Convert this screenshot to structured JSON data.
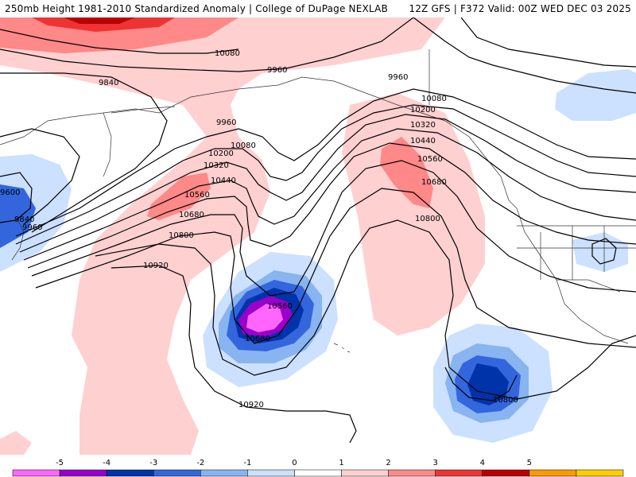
{
  "header": {
    "left_title": "250mb Height 1981-2010 Standardized Anomaly | College of DuPage NEXLAB",
    "right_title": "12Z GFS | F372 Valid: 00Z WED DEC 03 2025"
  },
  "map": {
    "contour_labels": [
      "10080",
      "9960",
      "9840",
      "9960",
      "10080",
      "10200",
      "10320",
      "10440",
      "10560",
      "10680",
      "10800",
      "10920",
      "9600",
      "9840",
      "9960",
      "10560",
      "10680",
      "10920",
      "9960",
      "10080",
      "10200",
      "10320",
      "10440",
      "10560",
      "10680",
      "10800",
      "10800"
    ]
  },
  "legend": {
    "ticks": [
      "-5",
      "-4",
      "-3",
      "-2",
      "-1",
      "0",
      "1",
      "2",
      "3",
      "4",
      "5"
    ],
    "colors": [
      "#ff66ff",
      "#9900cc",
      "#0033aa",
      "#3366dd",
      "#88b4f0",
      "#cce0ff",
      "#ffffff",
      "#ffd0d0",
      "#ff8888",
      "#ee3333",
      "#bb0000",
      "#ff9900",
      "#ffcc00"
    ]
  }
}
